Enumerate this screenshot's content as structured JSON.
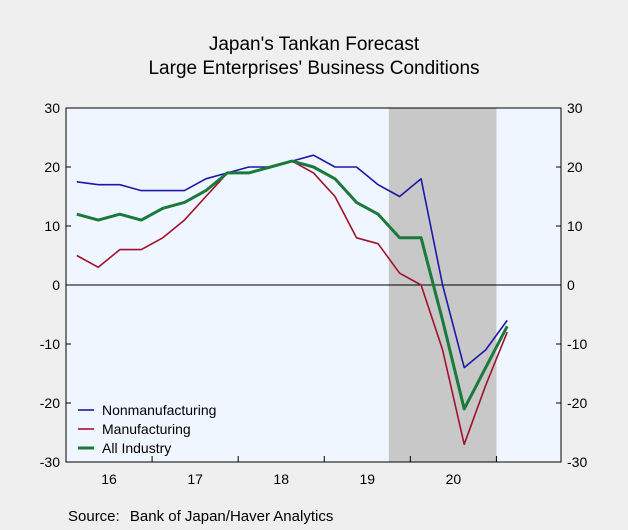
{
  "chart_data": {
    "type": "line",
    "title": "Japan's Tankan Forecast",
    "subtitle": "Large Enterprises' Business Conditions",
    "source_label": "Source:",
    "source_text": "Bank of Japan/Haver Analytics",
    "ylim": [
      -30,
      30
    ],
    "y_ticks": [
      "30",
      "20",
      "10",
      "0",
      "-10",
      "-20",
      "-30"
    ],
    "y_tick_values": [
      30,
      20,
      10,
      0,
      -10,
      -20,
      -30
    ],
    "x_labels": [
      "16",
      "17",
      "18",
      "19",
      "20"
    ],
    "x_quarters": [
      "2016Q1",
      "2016Q2",
      "2016Q3",
      "2016Q4",
      "2017Q1",
      "2017Q2",
      "2017Q3",
      "2017Q4",
      "2018Q1",
      "2018Q2",
      "2018Q3",
      "2018Q4",
      "2019Q1",
      "2019Q2",
      "2019Q3",
      "2019Q4",
      "2020Q1",
      "2020Q2",
      "2020Q3",
      "2020Q4",
      "2021Q1"
    ],
    "recession_shading": {
      "start": "2019Q4",
      "end": "2020Q4"
    },
    "legend_placement": "bottom-left",
    "grid": false,
    "series": [
      {
        "name": "Nonmanufacturing",
        "color": "#1a1aa6",
        "values": [
          17.5,
          17,
          17,
          16,
          16,
          16,
          18,
          19,
          20,
          20,
          21,
          22,
          20,
          20,
          17,
          15,
          18,
          0,
          -14,
          -11,
          -6
        ]
      },
      {
        "name": "Manufacturing",
        "color": "#a0122e",
        "values": [
          5,
          3,
          6,
          6,
          8,
          11,
          15,
          19,
          19,
          20,
          21,
          19,
          15,
          8,
          7,
          2,
          0,
          -11,
          -27,
          -17,
          -8
        ]
      },
      {
        "name": "All Industry",
        "color": "#1b7a3b",
        "values": [
          12,
          11,
          12,
          11,
          13,
          14,
          16,
          19,
          19,
          20,
          21,
          20,
          18,
          14,
          12,
          8,
          8,
          -6,
          -21,
          -14,
          -7
        ]
      }
    ]
  }
}
